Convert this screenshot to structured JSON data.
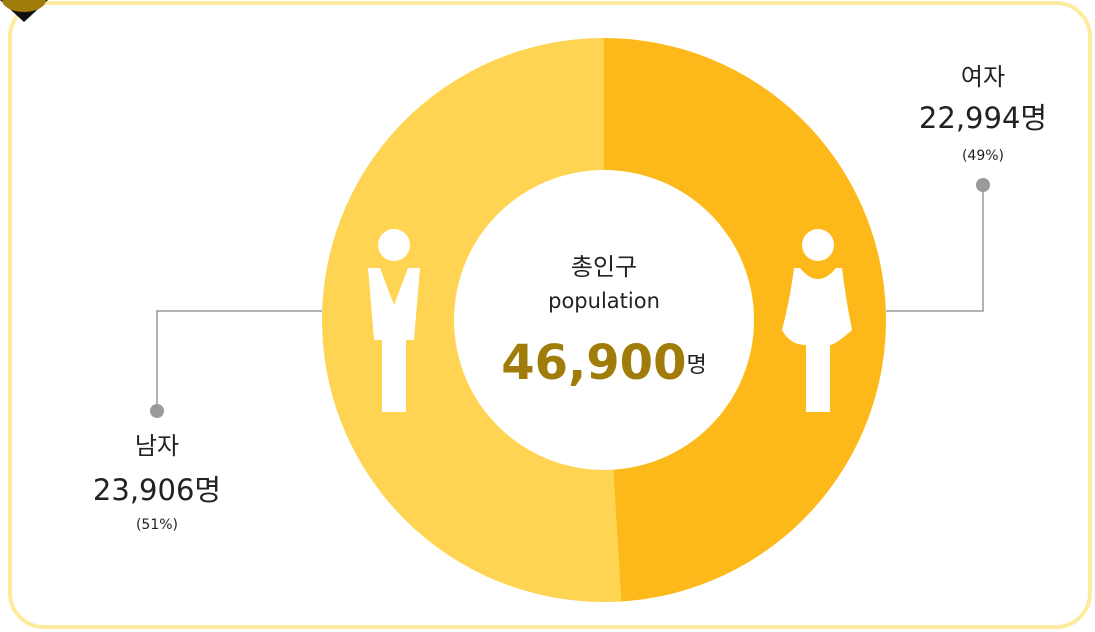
{
  "chart_data": {
    "type": "donut",
    "categories": [
      "남자",
      "여자"
    ],
    "values": [
      23906,
      22994
    ],
    "value_labels": [
      "23,906명",
      "22,994명"
    ],
    "percent_labels": [
      "(51%)",
      "(49%)"
    ],
    "colors": [
      "#fed452",
      "#fdb919"
    ],
    "center": {
      "label": "총인구",
      "sublabel": "population",
      "total": "46,900",
      "unit": "명"
    }
  }
}
